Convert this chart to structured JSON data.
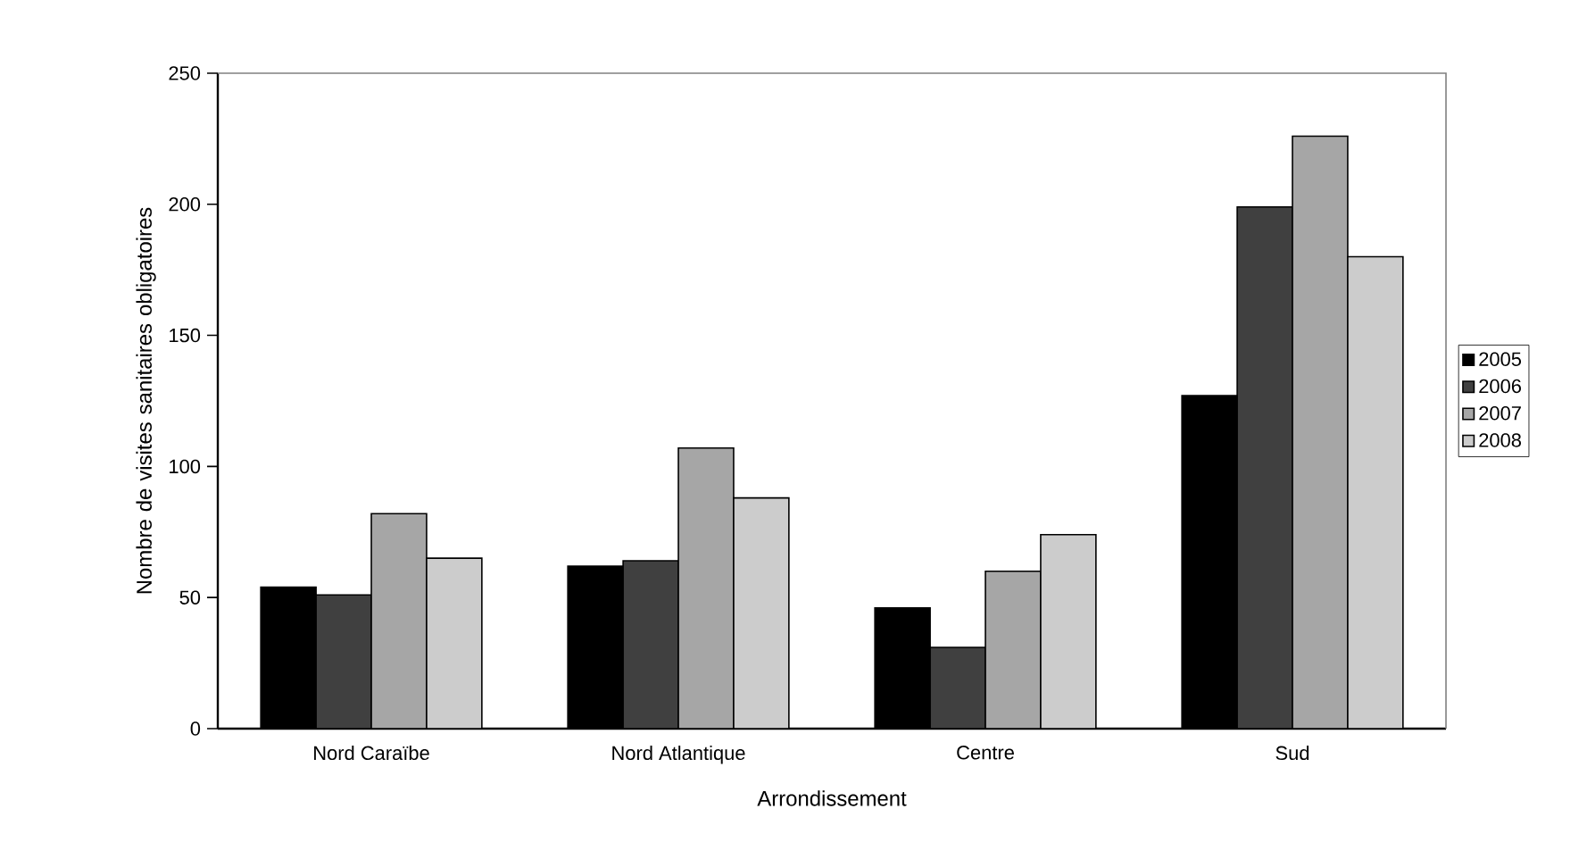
{
  "chart_data": {
    "type": "bar",
    "xlabel": "Arrondissement",
    "ylabel": "Nombre de visites sanitaires obligatoires",
    "categories": [
      "Nord Caraïbe",
      "Nord Atlantique",
      "Centre",
      "Sud"
    ],
    "series": [
      {
        "name": "2005",
        "color": "#000000",
        "values": [
          54,
          62,
          46,
          127
        ]
      },
      {
        "name": "2006",
        "color": "#404040",
        "values": [
          51,
          64,
          31,
          199
        ]
      },
      {
        "name": "2007",
        "color": "#a6a6a6",
        "values": [
          82,
          107,
          60,
          226
        ]
      },
      {
        "name": "2008",
        "color": "#cccccc",
        "values": [
          65,
          88,
          74,
          180
        ]
      }
    ],
    "ylim": [
      0,
      250
    ],
    "yticks": [
      0,
      50,
      100,
      150,
      200,
      250
    ],
    "grid": false,
    "legend": "right"
  }
}
